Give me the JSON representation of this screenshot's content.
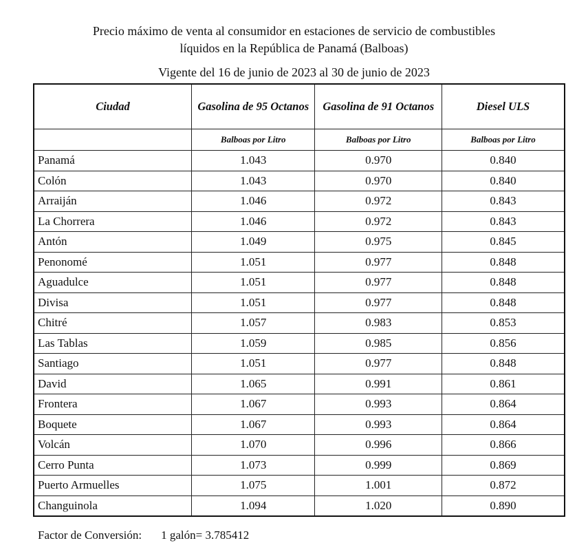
{
  "title_line1": "Precio máximo de venta al consumidor en estaciones de servicio de combustibles",
  "title_line2": "líquidos en la República de Panamá (Balboas)",
  "validity": "Vigente del 16 de junio de 2023 al 30 de junio de 2023",
  "headers": [
    "Ciudad",
    "Gasolina de 95 Octanos",
    "Gasolina de 91 Octanos",
    "Diesel ULS"
  ],
  "units": [
    "",
    "Balboas por Litro",
    "Balboas por Litro",
    "Balboas por Litro"
  ],
  "rows": [
    [
      "Panamá",
      "1.043",
      "0.970",
      "0.840"
    ],
    [
      "Colón",
      "1.043",
      "0.970",
      "0.840"
    ],
    [
      "Arraiján",
      "1.046",
      "0.972",
      "0.843"
    ],
    [
      "La Chorrera",
      "1.046",
      "0.972",
      "0.843"
    ],
    [
      "Antón",
      "1.049",
      "0.975",
      "0.845"
    ],
    [
      "Penonomé",
      "1.051",
      "0.977",
      "0.848"
    ],
    [
      "Aguadulce",
      "1.051",
      "0.977",
      "0.848"
    ],
    [
      "Divisa",
      "1.051",
      "0.977",
      "0.848"
    ],
    [
      "Chitré",
      "1.057",
      "0.983",
      "0.853"
    ],
    [
      "Las Tablas",
      "1.059",
      "0.985",
      "0.856"
    ],
    [
      "Santiago",
      "1.051",
      "0.977",
      "0.848"
    ],
    [
      "David",
      "1.065",
      "0.991",
      "0.861"
    ],
    [
      "Frontera",
      "1.067",
      "0.993",
      "0.864"
    ],
    [
      "Boquete",
      "1.067",
      "0.993",
      "0.864"
    ],
    [
      "Volcán",
      "1.070",
      "0.996",
      "0.866"
    ],
    [
      "Cerro Punta",
      "1.073",
      "0.999",
      "0.869"
    ],
    [
      "Puerto Armuelles",
      "1.075",
      "1.001",
      "0.872"
    ],
    [
      "Changuinola",
      "1.094",
      "1.020",
      "0.890"
    ]
  ],
  "footer": {
    "label": "Factor de Conversión:",
    "value": "1 galón= 3.785412"
  }
}
